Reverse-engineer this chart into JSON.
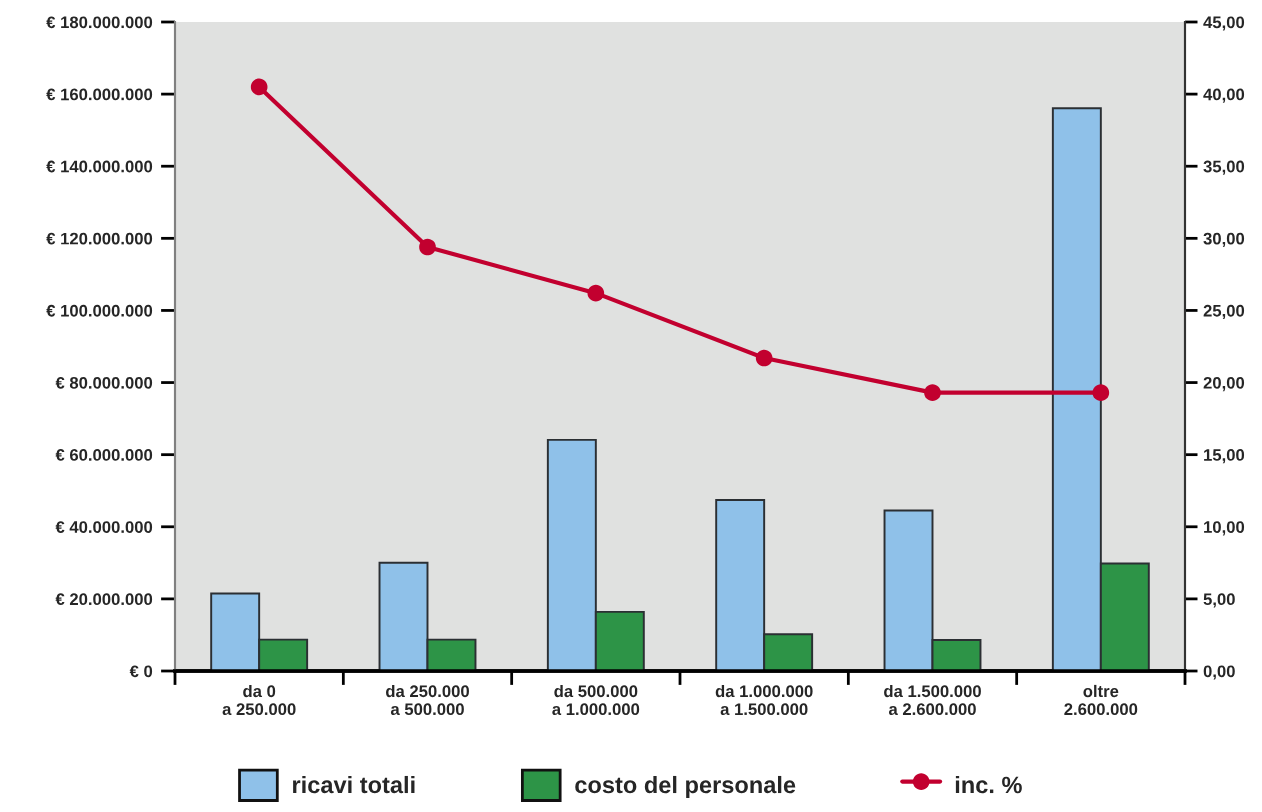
{
  "chart_data": {
    "type": "bar",
    "categories": [
      "da 0\na 250.000",
      "da 250.000\na 500.000",
      "da 500.000\na 1.000.000",
      "da 1.000.000\na 1.500.000",
      "da 1.500.000\na 2.600.000",
      "oltre\n2.600.000"
    ],
    "series": [
      {
        "name": "ricavi totali",
        "color": "#8fc1e9",
        "values": [
          21500000,
          30000000,
          64100000,
          47400000,
          44500000,
          156100000
        ]
      },
      {
        "name": "costo del personale",
        "color": "#2d9447",
        "values": [
          8700000,
          8700000,
          16400000,
          10200000,
          8600000,
          29800000
        ]
      },
      {
        "name": "inc. %",
        "type": "line",
        "axis": "y2",
        "color": "#c2002f",
        "values": [
          40.5,
          29.4,
          26.2,
          21.7,
          19.3,
          19.3
        ]
      }
    ],
    "ylim": [
      0,
      180000000
    ],
    "yticks": [
      {
        "value": 0,
        "label": "€ 0"
      },
      {
        "value": 20000000,
        "label": "€ 20.000.000"
      },
      {
        "value": 40000000,
        "label": "€ 40.000.000"
      },
      {
        "value": 60000000,
        "label": "€ 60.000.000"
      },
      {
        "value": 80000000,
        "label": "€ 80.000.000"
      },
      {
        "value": 100000000,
        "label": "€ 100.000.000"
      },
      {
        "value": 120000000,
        "label": "€ 120.000.000"
      },
      {
        "value": 140000000,
        "label": "€ 140.000.000"
      },
      {
        "value": 160000000,
        "label": "€ 160.000.000"
      },
      {
        "value": 180000000,
        "label": "€ 180.000.000"
      }
    ],
    "y2lim": [
      0,
      45
    ],
    "y2ticks": [
      {
        "value": 0,
        "label": "0,00"
      },
      {
        "value": 5,
        "label": "5,00"
      },
      {
        "value": 10,
        "label": "10,00"
      },
      {
        "value": 15,
        "label": "15,00"
      },
      {
        "value": 20,
        "label": "20,00"
      },
      {
        "value": 25,
        "label": "25,00"
      },
      {
        "value": 30,
        "label": "30,00"
      },
      {
        "value": 35,
        "label": "35,00"
      },
      {
        "value": 40,
        "label": "40,00"
      },
      {
        "value": 45,
        "label": "45,00"
      }
    ],
    "grid": false,
    "legend": "bottom",
    "marker": "circle"
  }
}
